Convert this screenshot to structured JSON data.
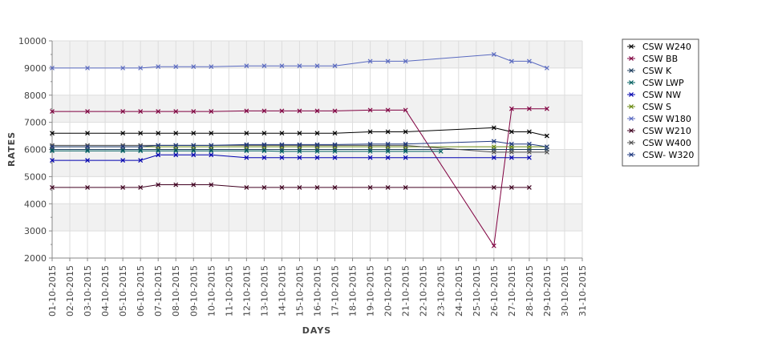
{
  "chart_data": {
    "type": "line",
    "title": "",
    "xlabel": "DAYS",
    "ylabel": "RATES",
    "ylim": [
      2000,
      10000
    ],
    "yticks": [
      2000,
      3000,
      4000,
      5000,
      6000,
      7000,
      8000,
      9000,
      10000
    ],
    "xlim": [
      "01-10-2015",
      "31-10-2015"
    ],
    "x_tick_labels": [
      "01-10-2015",
      "02-10-2015",
      "03-10-2015",
      "04-10-2015",
      "05-10-2015",
      "06-10-2015",
      "07-10-2015",
      "08-10-2015",
      "09-10-2015",
      "10-10-2015",
      "11-10-2015",
      "12-10-2015",
      "13-10-2015",
      "14-10-2015",
      "15-10-2015",
      "16-10-2015",
      "17-10-2015",
      "18-10-2015",
      "19-10-2015",
      "20-10-2015",
      "21-10-2015",
      "22-10-2015",
      "23-10-2015",
      "24-10-2015",
      "25-10-2015",
      "26-10-2015",
      "27-10-2015",
      "28-10-2015",
      "29-10-2015",
      "30-10-2015",
      "31-10-2015"
    ],
    "grid": "horizontal alternating bands",
    "legend_position": "right",
    "series": [
      {
        "name": "CSW  W240",
        "color": "#000000",
        "points": [
          [
            "01-10-2015",
            6600
          ],
          [
            "03-10-2015",
            6600
          ],
          [
            "05-10-2015",
            6600
          ],
          [
            "06-10-2015",
            6600
          ],
          [
            "07-10-2015",
            6600
          ],
          [
            "08-10-2015",
            6600
          ],
          [
            "09-10-2015",
            6600
          ],
          [
            "10-10-2015",
            6600
          ],
          [
            "12-10-2015",
            6600
          ],
          [
            "13-10-2015",
            6600
          ],
          [
            "14-10-2015",
            6600
          ],
          [
            "15-10-2015",
            6600
          ],
          [
            "16-10-2015",
            6600
          ],
          [
            "17-10-2015",
            6600
          ],
          [
            "19-10-2015",
            6650
          ],
          [
            "20-10-2015",
            6650
          ],
          [
            "21-10-2015",
            6650
          ],
          [
            "26-10-2015",
            6800
          ],
          [
            "27-10-2015",
            6650
          ],
          [
            "28-10-2015",
            6650
          ],
          [
            "29-10-2015",
            6500
          ]
        ]
      },
      {
        "name": "CSW BB",
        "color": "#800040",
        "points": [
          [
            "01-10-2015",
            7400
          ],
          [
            "03-10-2015",
            7400
          ],
          [
            "05-10-2015",
            7400
          ],
          [
            "06-10-2015",
            7400
          ],
          [
            "07-10-2015",
            7400
          ],
          [
            "08-10-2015",
            7400
          ],
          [
            "09-10-2015",
            7400
          ],
          [
            "10-10-2015",
            7400
          ],
          [
            "12-10-2015",
            7420
          ],
          [
            "13-10-2015",
            7420
          ],
          [
            "14-10-2015",
            7420
          ],
          [
            "15-10-2015",
            7420
          ],
          [
            "16-10-2015",
            7420
          ],
          [
            "17-10-2015",
            7420
          ],
          [
            "19-10-2015",
            7450
          ],
          [
            "20-10-2015",
            7450
          ],
          [
            "21-10-2015",
            7450
          ],
          [
            "26-10-2015",
            2450
          ],
          [
            "27-10-2015",
            7500
          ],
          [
            "28-10-2015",
            7500
          ],
          [
            "29-10-2015",
            7500
          ]
        ]
      },
      {
        "name": "CSW K",
        "color": "#204060",
        "points": [
          [
            "01-10-2015",
            6000
          ],
          [
            "03-10-2015",
            6000
          ],
          [
            "05-10-2015",
            6000
          ],
          [
            "06-10-2015",
            6000
          ],
          [
            "07-10-2015",
            6000
          ],
          [
            "08-10-2015",
            6000
          ],
          [
            "09-10-2015",
            6000
          ],
          [
            "10-10-2015",
            6000
          ],
          [
            "12-10-2015",
            6000
          ],
          [
            "13-10-2015",
            6000
          ],
          [
            "14-10-2015",
            6000
          ],
          [
            "15-10-2015",
            6000
          ],
          [
            "16-10-2015",
            6000
          ],
          [
            "17-10-2015",
            6000
          ],
          [
            "19-10-2015",
            6000
          ],
          [
            "20-10-2015",
            6000
          ],
          [
            "21-10-2015",
            6000
          ],
          [
            "26-10-2015",
            6000
          ],
          [
            "27-10-2015",
            6000
          ],
          [
            "28-10-2015",
            6000
          ],
          [
            "29-10-2015",
            6000
          ]
        ]
      },
      {
        "name": "CSW LWP",
        "color": "#006060",
        "points": [
          [
            "01-10-2015",
            5950
          ],
          [
            "03-10-2015",
            5950
          ],
          [
            "05-10-2015",
            5950
          ],
          [
            "06-10-2015",
            5950
          ],
          [
            "07-10-2015",
            5950
          ],
          [
            "08-10-2015",
            5950
          ],
          [
            "09-10-2015",
            5950
          ],
          [
            "10-10-2015",
            5950
          ],
          [
            "12-10-2015",
            5950
          ],
          [
            "13-10-2015",
            5950
          ],
          [
            "14-10-2015",
            5930
          ],
          [
            "15-10-2015",
            5930
          ],
          [
            "16-10-2015",
            5930
          ],
          [
            "17-10-2015",
            5930
          ],
          [
            "19-10-2015",
            5930
          ],
          [
            "20-10-2015",
            5930
          ],
          [
            "21-10-2015",
            5930
          ],
          [
            "23-10-2015",
            5930
          ]
        ]
      },
      {
        "name": "CSW NW",
        "color": "#0000b0",
        "points": [
          [
            "01-10-2015",
            5600
          ],
          [
            "03-10-2015",
            5600
          ],
          [
            "05-10-2015",
            5600
          ],
          [
            "06-10-2015",
            5600
          ],
          [
            "07-10-2015",
            5800
          ],
          [
            "08-10-2015",
            5800
          ],
          [
            "09-10-2015",
            5800
          ],
          [
            "10-10-2015",
            5800
          ],
          [
            "12-10-2015",
            5700
          ],
          [
            "13-10-2015",
            5700
          ],
          [
            "14-10-2015",
            5700
          ],
          [
            "15-10-2015",
            5700
          ],
          [
            "16-10-2015",
            5700
          ],
          [
            "17-10-2015",
            5700
          ],
          [
            "19-10-2015",
            5700
          ],
          [
            "20-10-2015",
            5700
          ],
          [
            "21-10-2015",
            5700
          ],
          [
            "26-10-2015",
            5700
          ],
          [
            "27-10-2015",
            5700
          ],
          [
            "28-10-2015",
            5700
          ]
        ]
      },
      {
        "name": "CSW S",
        "color": "#6a8a10",
        "points": [
          [
            "01-10-2015",
            6100
          ],
          [
            "03-10-2015",
            6100
          ],
          [
            "05-10-2015",
            6100
          ],
          [
            "06-10-2015",
            6100
          ],
          [
            "07-10-2015",
            6100
          ],
          [
            "08-10-2015",
            6100
          ],
          [
            "09-10-2015",
            6100
          ],
          [
            "10-10-2015",
            6100
          ],
          [
            "12-10-2015",
            6100
          ],
          [
            "13-10-2015",
            6100
          ],
          [
            "14-10-2015",
            6100
          ],
          [
            "15-10-2015",
            6100
          ],
          [
            "16-10-2015",
            6100
          ],
          [
            "17-10-2015",
            6100
          ],
          [
            "19-10-2015",
            6100
          ],
          [
            "20-10-2015",
            6100
          ],
          [
            "21-10-2015",
            6100
          ],
          [
            "26-10-2015",
            6100
          ],
          [
            "27-10-2015",
            6100
          ],
          [
            "28-10-2015",
            6100
          ],
          [
            "29-10-2015",
            6100
          ]
        ]
      },
      {
        "name": "CSW W180",
        "color": "#5a6ac0",
        "points": [
          [
            "01-10-2015",
            9000
          ],
          [
            "03-10-2015",
            9000
          ],
          [
            "05-10-2015",
            9000
          ],
          [
            "06-10-2015",
            9000
          ],
          [
            "07-10-2015",
            9050
          ],
          [
            "08-10-2015",
            9050
          ],
          [
            "09-10-2015",
            9050
          ],
          [
            "10-10-2015",
            9050
          ],
          [
            "12-10-2015",
            9080
          ],
          [
            "13-10-2015",
            9080
          ],
          [
            "14-10-2015",
            9080
          ],
          [
            "15-10-2015",
            9080
          ],
          [
            "16-10-2015",
            9080
          ],
          [
            "17-10-2015",
            9080
          ],
          [
            "19-10-2015",
            9250
          ],
          [
            "20-10-2015",
            9250
          ],
          [
            "21-10-2015",
            9250
          ],
          [
            "26-10-2015",
            9500
          ],
          [
            "27-10-2015",
            9250
          ],
          [
            "28-10-2015",
            9250
          ],
          [
            "29-10-2015",
            9000
          ]
        ]
      },
      {
        "name": "CSW W210",
        "color": "#400020",
        "points": [
          [
            "01-10-2015",
            4600
          ],
          [
            "03-10-2015",
            4600
          ],
          [
            "05-10-2015",
            4600
          ],
          [
            "06-10-2015",
            4600
          ],
          [
            "07-10-2015",
            4700
          ],
          [
            "08-10-2015",
            4700
          ],
          [
            "09-10-2015",
            4700
          ],
          [
            "10-10-2015",
            4700
          ],
          [
            "12-10-2015",
            4600
          ],
          [
            "13-10-2015",
            4600
          ],
          [
            "14-10-2015",
            4600
          ],
          [
            "15-10-2015",
            4600
          ],
          [
            "16-10-2015",
            4600
          ],
          [
            "17-10-2015",
            4600
          ],
          [
            "19-10-2015",
            4600
          ],
          [
            "20-10-2015",
            4600
          ],
          [
            "21-10-2015",
            4600
          ],
          [
            "26-10-2015",
            4600
          ],
          [
            "27-10-2015",
            4600
          ],
          [
            "28-10-2015",
            4600
          ]
        ]
      },
      {
        "name": "CSW W400",
        "color": "#505050",
        "points": [
          [
            "01-10-2015",
            6150
          ],
          [
            "03-10-2015",
            6150
          ],
          [
            "05-10-2015",
            6150
          ],
          [
            "06-10-2015",
            6150
          ],
          [
            "07-10-2015",
            6150
          ],
          [
            "08-10-2015",
            6150
          ],
          [
            "09-10-2015",
            6150
          ],
          [
            "10-10-2015",
            6150
          ],
          [
            "12-10-2015",
            6150
          ],
          [
            "13-10-2015",
            6150
          ],
          [
            "14-10-2015",
            6150
          ],
          [
            "15-10-2015",
            6150
          ],
          [
            "16-10-2015",
            6150
          ],
          [
            "17-10-2015",
            6150
          ],
          [
            "19-10-2015",
            6150
          ],
          [
            "20-10-2015",
            6150
          ],
          [
            "21-10-2015",
            6150
          ],
          [
            "26-10-2015",
            5900
          ],
          [
            "27-10-2015",
            5900
          ],
          [
            "28-10-2015",
            5900
          ],
          [
            "29-10-2015",
            5900
          ]
        ]
      },
      {
        "name": "CSW- W320",
        "color": "#203a80",
        "points": [
          [
            "01-10-2015",
            6100
          ],
          [
            "03-10-2015",
            6100
          ],
          [
            "05-10-2015",
            6100
          ],
          [
            "06-10-2015",
            6100
          ],
          [
            "07-10-2015",
            6150
          ],
          [
            "08-10-2015",
            6150
          ],
          [
            "09-10-2015",
            6150
          ],
          [
            "10-10-2015",
            6150
          ],
          [
            "12-10-2015",
            6180
          ],
          [
            "13-10-2015",
            6180
          ],
          [
            "14-10-2015",
            6180
          ],
          [
            "15-10-2015",
            6180
          ],
          [
            "16-10-2015",
            6180
          ],
          [
            "17-10-2015",
            6180
          ],
          [
            "19-10-2015",
            6200
          ],
          [
            "20-10-2015",
            6200
          ],
          [
            "21-10-2015",
            6200
          ],
          [
            "26-10-2015",
            6300
          ],
          [
            "27-10-2015",
            6200
          ],
          [
            "28-10-2015",
            6200
          ],
          [
            "29-10-2015",
            6100
          ]
        ]
      }
    ]
  }
}
